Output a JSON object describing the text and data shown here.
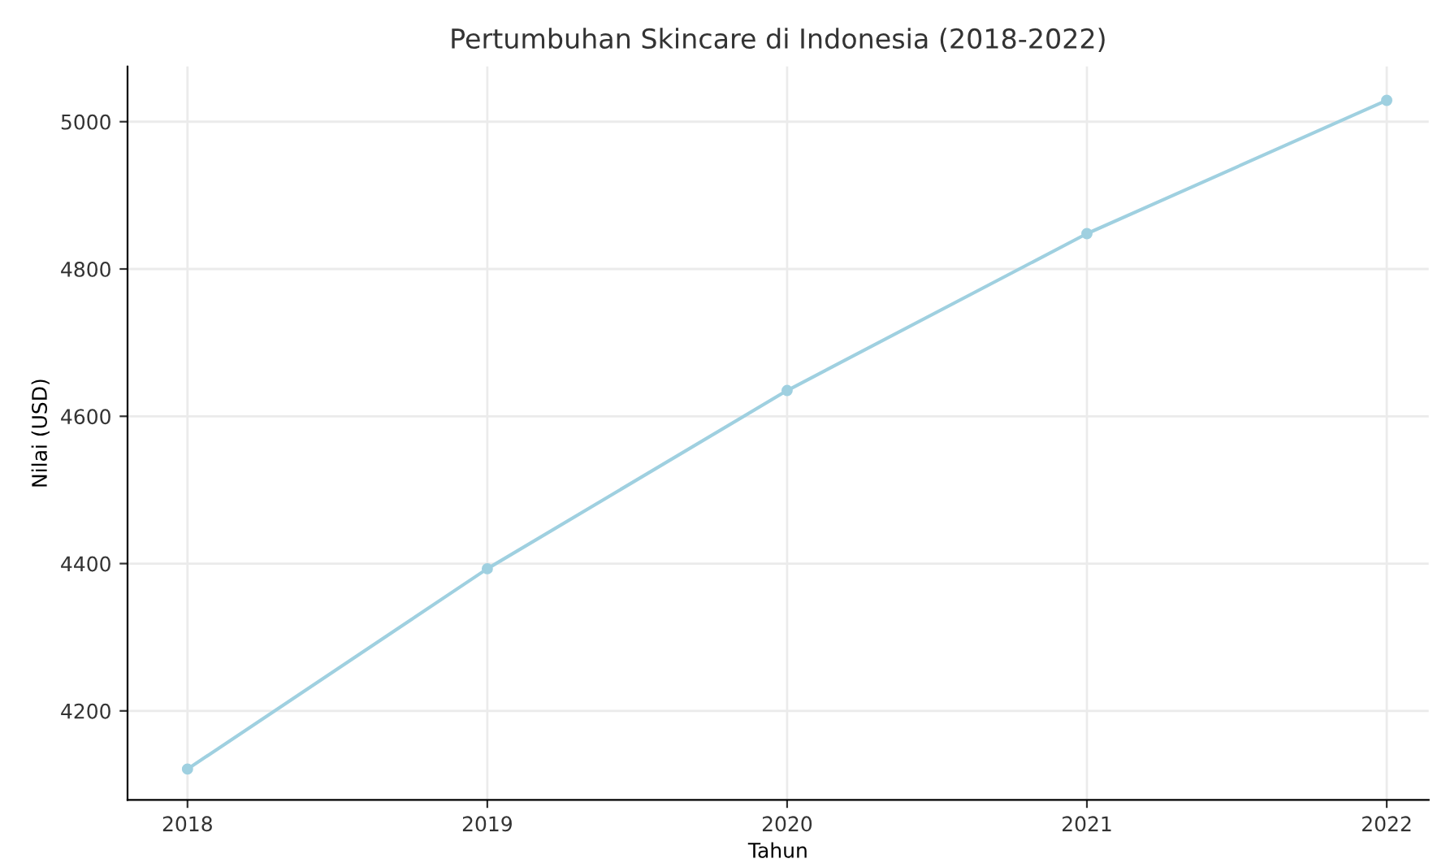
{
  "chart_data": {
    "type": "line",
    "title": "Pertumbuhan Skincare di Indonesia (2018-2022)",
    "xlabel": "Tahun",
    "ylabel": "Nilai (USD)",
    "x": [
      2018,
      2019,
      2020,
      2021,
      2022
    ],
    "series": [
      {
        "color": "#9fd0e0",
        "values": [
          4121,
          4393,
          4635,
          4848,
          5029
        ]
      }
    ],
    "xlim": [
      2017.8,
      2022.14
    ],
    "xticks": [
      2018,
      2019,
      2020,
      2021,
      2022
    ],
    "ylim": [
      4079,
      5075
    ],
    "yticks": [
      4200,
      4400,
      4600,
      4800,
      5000
    ],
    "grid": true,
    "marker": "circle",
    "line_style": "solid"
  }
}
